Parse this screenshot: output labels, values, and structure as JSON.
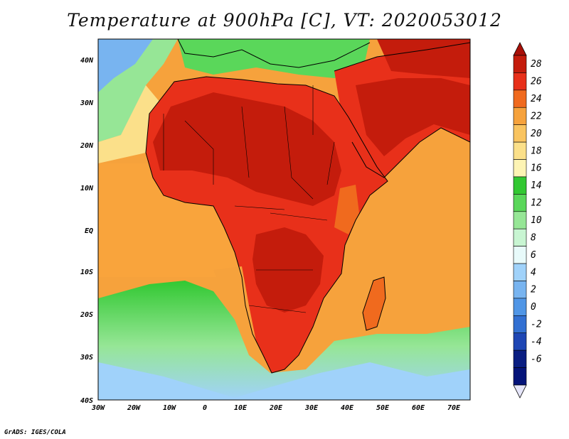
{
  "title": "Temperature at 900hPa [C], VT: 2020053012",
  "credit": "GrADS: IGES/COLA",
  "map": {
    "projection": "lat-lon",
    "lon_range": [
      -30,
      75
    ],
    "lat_range": [
      -40,
      45
    ],
    "lon_ticks": [
      "30W",
      "20W",
      "10W",
      "0",
      "10E",
      "20E",
      "30E",
      "40E",
      "50E",
      "60E",
      "70E"
    ],
    "lat_ticks": [
      "40N",
      "30N",
      "20N",
      "10N",
      "EQ",
      "10S",
      "20S",
      "30S",
      "40S"
    ],
    "field": "temperature at 900hPa",
    "units": "C",
    "ocean_color": "#f6a23c",
    "land_color": "#e8231a"
  },
  "colorbar": {
    "labels": [
      "28",
      "26",
      "24",
      "22",
      "20",
      "18",
      "16",
      "14",
      "12",
      "10",
      "8",
      "6",
      "4",
      "2",
      "0",
      "-2",
      "-4",
      "-6"
    ],
    "colors": [
      "#c41c0c",
      "#e8301a",
      "#f06a1e",
      "#f6a23c",
      "#f9c460",
      "#fbe08a",
      "#fdf4b4",
      "#32c832",
      "#5ad75a",
      "#96e696",
      "#c8f5d2",
      "#e8fafa",
      "#a0d2fa",
      "#78b4f0",
      "#5096e6",
      "#3270d2",
      "#1e46b4",
      "#0a1e82",
      "#05147a"
    ],
    "over_color": "#a81008",
    "under_color": "#e6e6fa"
  }
}
